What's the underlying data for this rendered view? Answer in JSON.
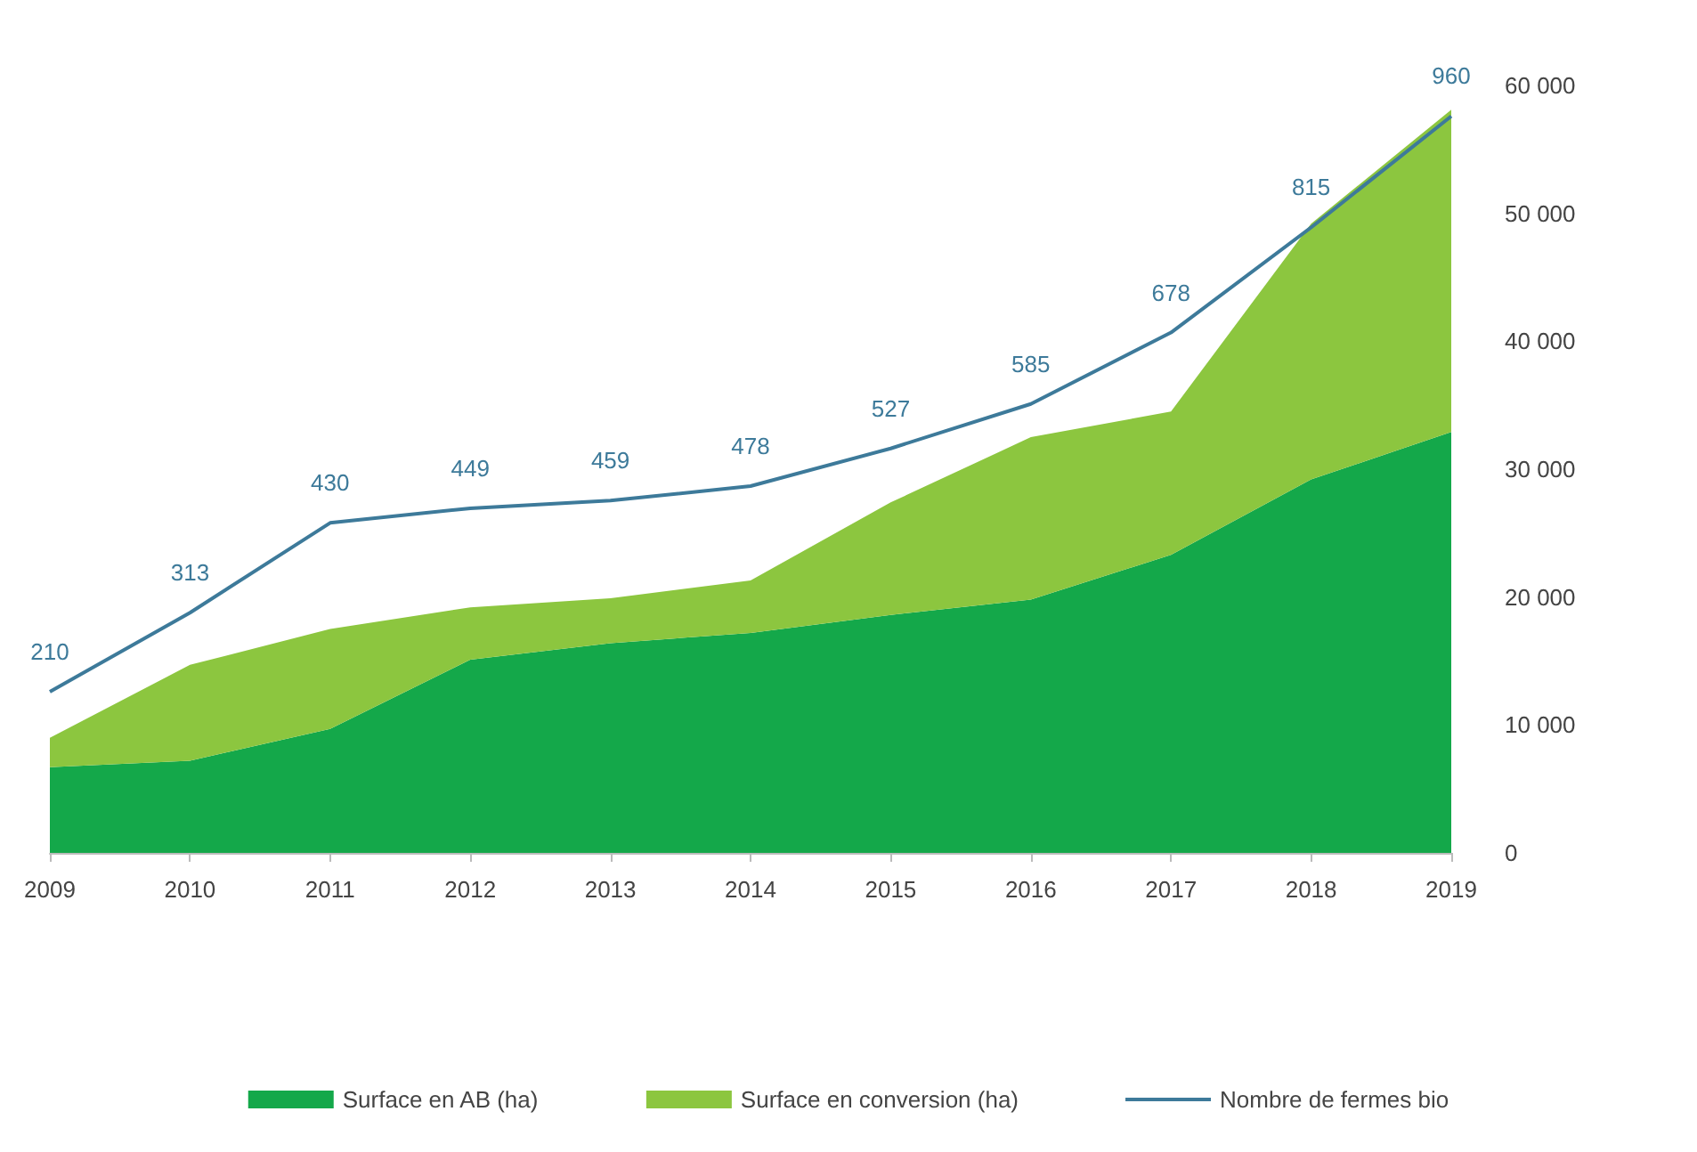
{
  "chart_data": {
    "type": "area",
    "stacked": true,
    "categories": [
      "2009",
      "2010",
      "2011",
      "2012",
      "2013",
      "2014",
      "2015",
      "2016",
      "2017",
      "2018",
      "2019"
    ],
    "series": [
      {
        "name": "Surface en AB (ha)",
        "color": "#14a84a",
        "values": [
          6700,
          7200,
          9700,
          15100,
          16400,
          17200,
          18600,
          19800,
          23300,
          29200,
          32900
        ]
      },
      {
        "name": "Surface en conversion (ha)",
        "color": "#8cc63f",
        "values": [
          2300,
          7500,
          7800,
          4100,
          3500,
          4100,
          8800,
          12700,
          11200,
          20000,
          25200
        ]
      },
      {
        "name": "Nombre de fermes bio",
        "type": "line",
        "axis": "y2",
        "color": "#3d7a9a",
        "values": [
          210,
          313,
          430,
          449,
          459,
          478,
          527,
          585,
          678,
          815,
          960
        ],
        "value_labels": [
          "210",
          "313",
          "430",
          "449",
          "459",
          "478",
          "527",
          "585",
          "678",
          "815",
          "960"
        ]
      }
    ],
    "ylim": [
      0,
      60000
    ],
    "yticks": [
      {
        "value": 0,
        "label": "0"
      },
      {
        "value": 10000,
        "label": "10 000"
      },
      {
        "value": 20000,
        "label": "20 000"
      },
      {
        "value": 30000,
        "label": "30 000"
      },
      {
        "value": 40000,
        "label": "40 000"
      },
      {
        "value": 50000,
        "label": "50 000"
      },
      {
        "value": 60000,
        "label": "60 000"
      }
    ],
    "grid": false,
    "legend": "bottom",
    "marker": "none"
  }
}
